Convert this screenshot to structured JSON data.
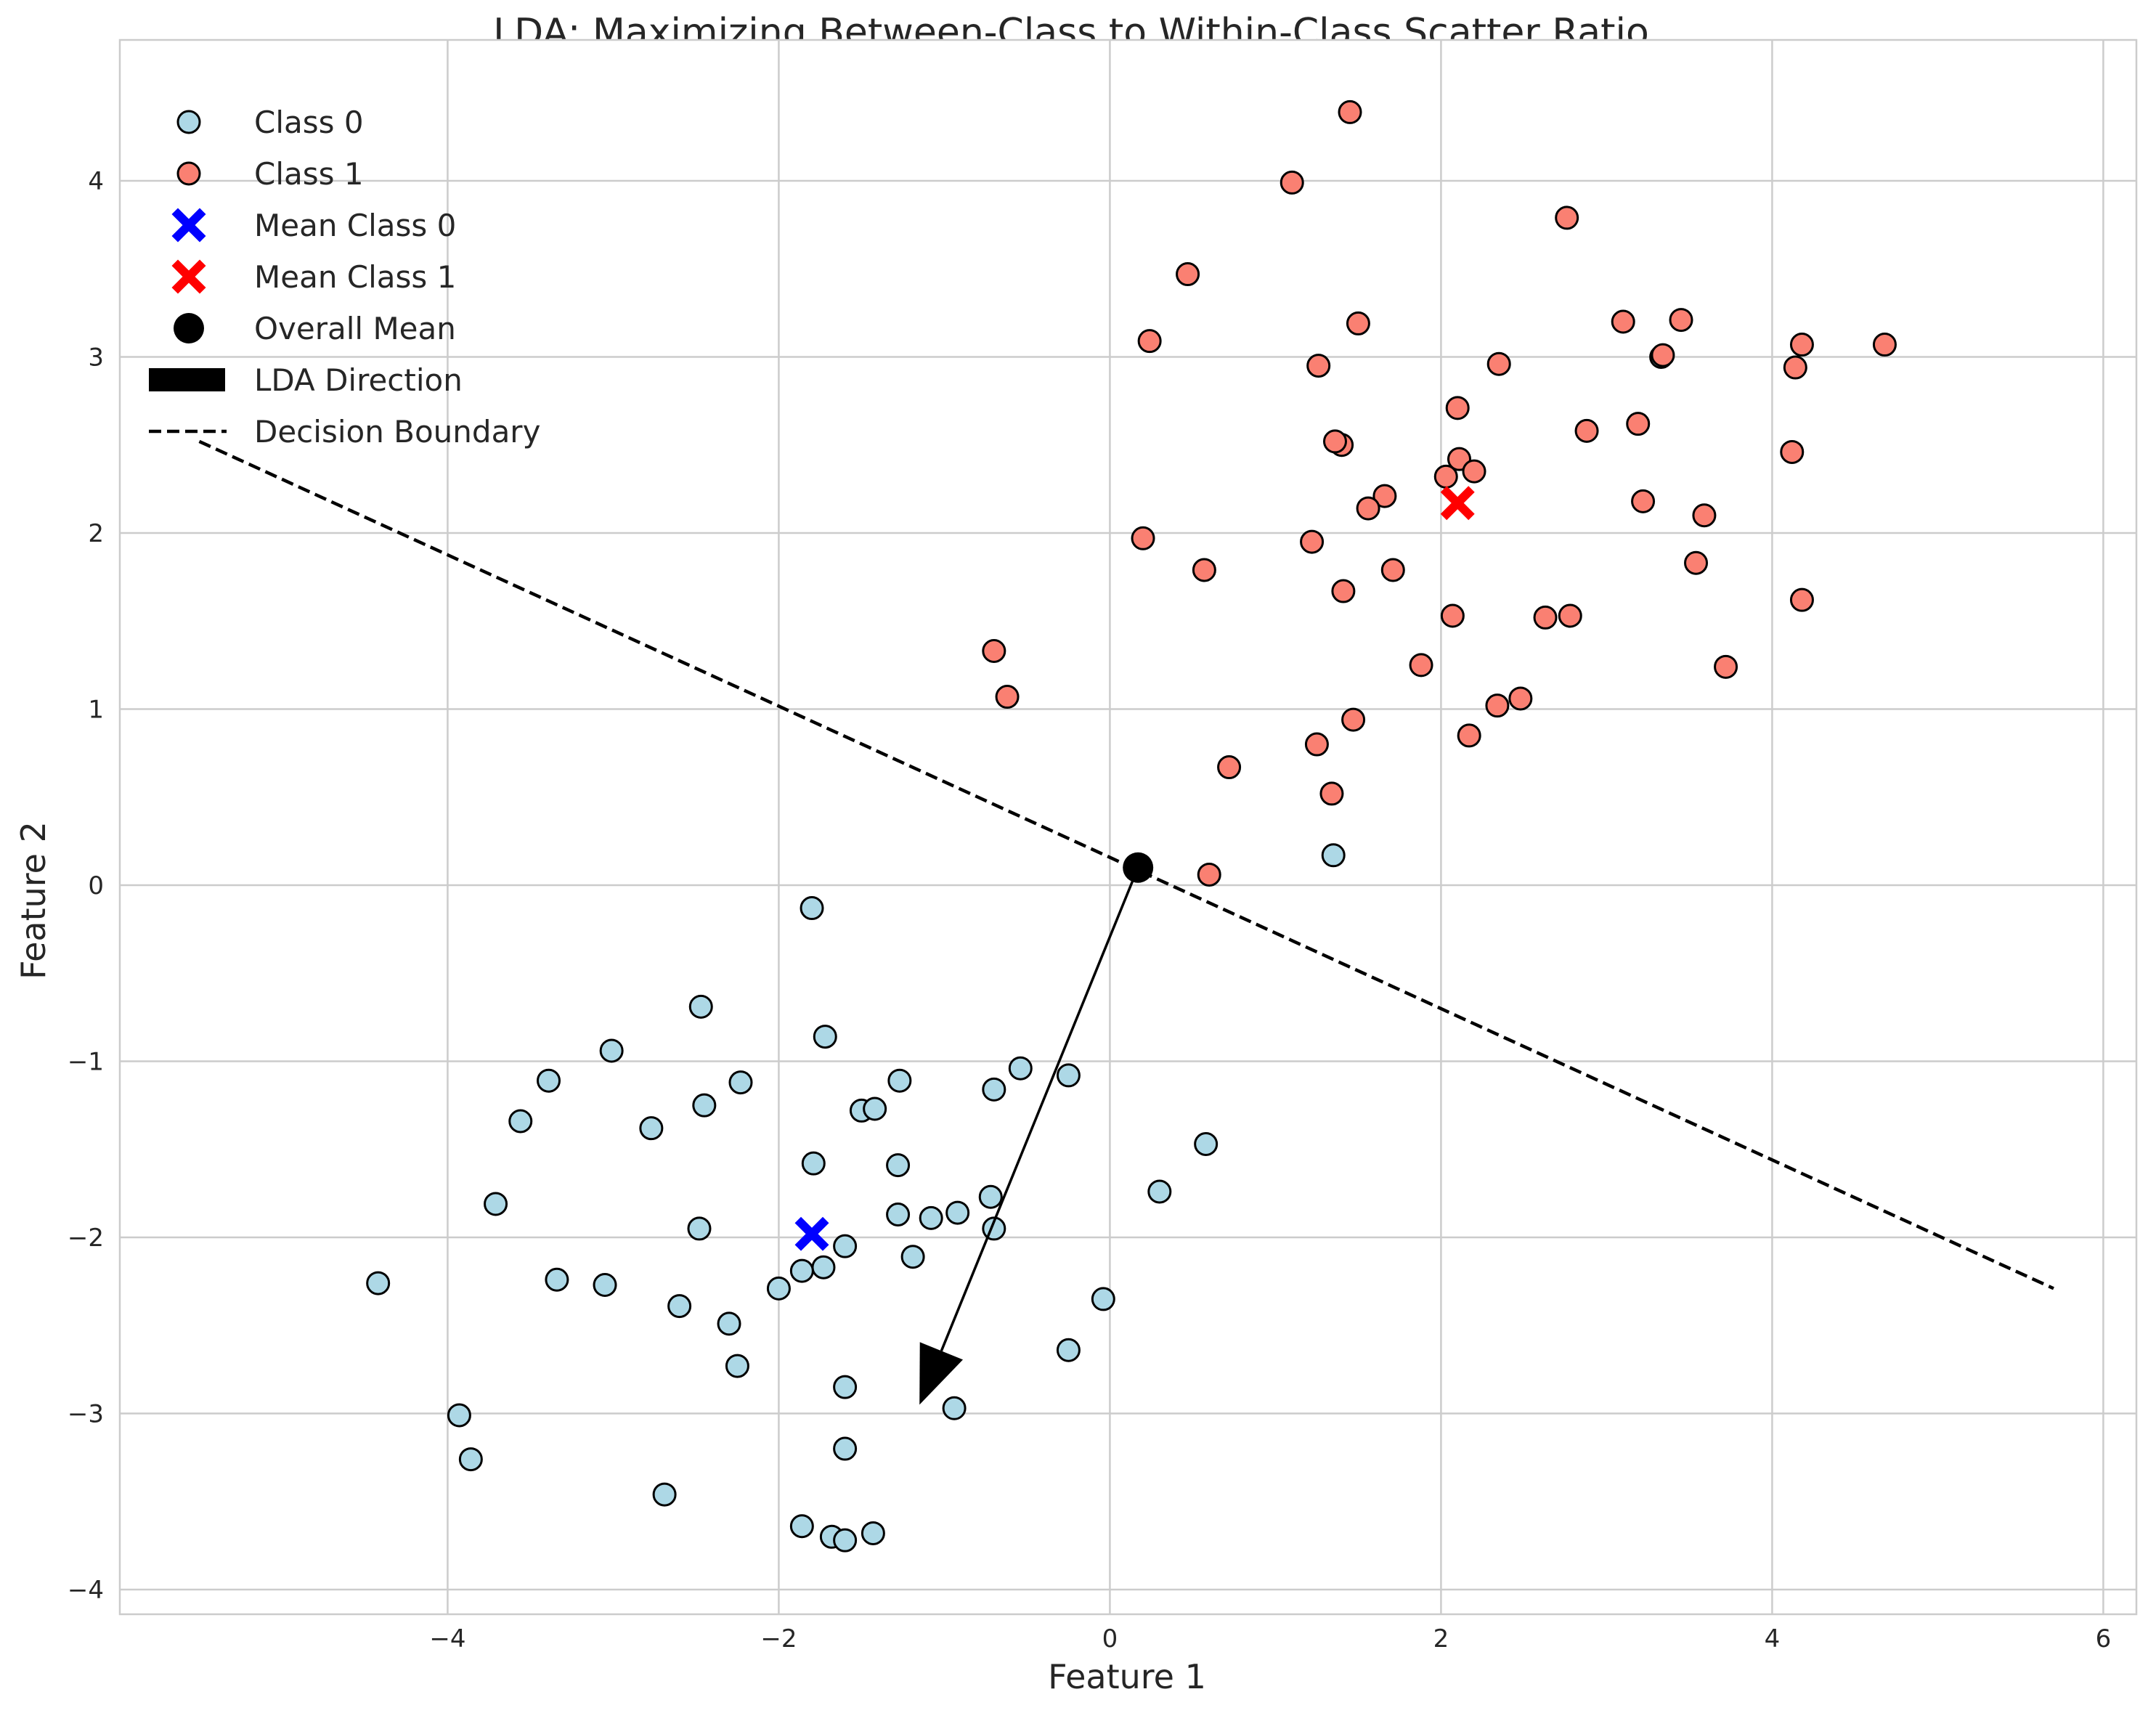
{
  "chart_data": {
    "type": "scatter",
    "title": "LDA: Maximizing Between-Class to Within-Class Scatter Ratio",
    "xlabel": "Feature 1",
    "ylabel": "Feature 2",
    "xlim": [
      -5.98,
      6.2
    ],
    "ylim": [
      -4.14,
      4.8
    ],
    "xticks": [
      -4,
      -2,
      0,
      2,
      4,
      6
    ],
    "yticks": [
      -4,
      -3,
      -2,
      -1,
      0,
      1,
      2,
      3,
      4
    ],
    "xtick_labels": [
      "−4",
      "−2",
      "0",
      "2",
      "4",
      "6"
    ],
    "ytick_labels": [
      "−4",
      "−3",
      "−2",
      "−1",
      "0",
      "1",
      "2",
      "3",
      "4"
    ],
    "grid": true,
    "legend_position": "top-left",
    "legend": [
      {
        "label": "Class 0",
        "kind": "circle",
        "color": "#add8e6"
      },
      {
        "label": "Class 1",
        "kind": "circle",
        "color": "#fa8072"
      },
      {
        "label": "Mean Class 0",
        "kind": "x",
        "color": "#0000ff"
      },
      {
        "label": "Mean Class 1",
        "kind": "x",
        "color": "#ff0000"
      },
      {
        "label": "Overall Mean",
        "kind": "dot",
        "color": "#000000"
      },
      {
        "label": "LDA Direction",
        "kind": "arrow",
        "color": "#000000"
      },
      {
        "label": "Decision Boundary",
        "kind": "dashed",
        "color": "#000000"
      }
    ],
    "series": [
      {
        "name": "Class 0",
        "color": "#add8e6",
        "points": [
          [
            -1.8,
            -0.13
          ],
          [
            -2.47,
            -0.69
          ],
          [
            -1.72,
            -0.86
          ],
          [
            -3.01,
            -0.94
          ],
          [
            -0.54,
            -1.04
          ],
          [
            -0.25,
            -1.08
          ],
          [
            -3.39,
            -1.11
          ],
          [
            -2.23,
            -1.12
          ],
          [
            -1.27,
            -1.11
          ],
          [
            -0.7,
            -1.16
          ],
          [
            -2.45,
            -1.25
          ],
          [
            -1.5,
            -1.28
          ],
          [
            -1.42,
            -1.27
          ],
          [
            -3.56,
            -1.34
          ],
          [
            -2.77,
            -1.38
          ],
          [
            0.58,
            -1.47
          ],
          [
            -1.79,
            -1.58
          ],
          [
            -1.28,
            -1.59
          ],
          [
            -3.71,
            -1.81
          ],
          [
            -0.72,
            -1.77
          ],
          [
            0.3,
            -1.74
          ],
          [
            -1.28,
            -1.87
          ],
          [
            -1.08,
            -1.89
          ],
          [
            -0.92,
            -1.86
          ],
          [
            -2.48,
            -1.95
          ],
          [
            -0.7,
            -1.95
          ],
          [
            -1.6,
            -2.05
          ],
          [
            -1.19,
            -2.11
          ],
          [
            -1.73,
            -2.17
          ],
          [
            -1.86,
            -2.19
          ],
          [
            -4.42,
            -2.26
          ],
          [
            -3.34,
            -2.24
          ],
          [
            -3.05,
            -2.27
          ],
          [
            -2.0,
            -2.29
          ],
          [
            -0.04,
            -2.35
          ],
          [
            -2.6,
            -2.39
          ],
          [
            -2.3,
            -2.49
          ],
          [
            -0.25,
            -2.64
          ],
          [
            -2.25,
            -2.73
          ],
          [
            -1.6,
            -2.85
          ],
          [
            -0.94,
            -2.97
          ],
          [
            -3.93,
            -3.01
          ],
          [
            -1.6,
            -3.2
          ],
          [
            -3.86,
            -3.26
          ],
          [
            -2.69,
            -3.46
          ],
          [
            -1.86,
            -3.64
          ],
          [
            -1.68,
            -3.7
          ],
          [
            -1.6,
            -3.72
          ],
          [
            -1.43,
            -3.68
          ],
          [
            1.35,
            0.17
          ],
          [
            3.33,
            3.0
          ]
        ]
      },
      {
        "name": "Class 1",
        "color": "#fa8072",
        "points": [
          [
            1.45,
            4.39
          ],
          [
            1.1,
            3.99
          ],
          [
            2.76,
            3.79
          ],
          [
            0.47,
            3.47
          ],
          [
            1.5,
            3.19
          ],
          [
            3.1,
            3.2
          ],
          [
            3.45,
            3.21
          ],
          [
            0.24,
            3.09
          ],
          [
            4.68,
            3.07
          ],
          [
            4.18,
            3.07
          ],
          [
            3.34,
            3.01
          ],
          [
            1.26,
            2.95
          ],
          [
            2.35,
            2.96
          ],
          [
            4.14,
            2.94
          ],
          [
            2.1,
            2.71
          ],
          [
            3.19,
            2.62
          ],
          [
            2.88,
            2.58
          ],
          [
            1.4,
            2.5
          ],
          [
            1.36,
            2.52
          ],
          [
            2.11,
            2.42
          ],
          [
            4.12,
            2.46
          ],
          [
            2.2,
            2.35
          ],
          [
            2.03,
            2.32
          ],
          [
            1.66,
            2.21
          ],
          [
            1.56,
            2.14
          ],
          [
            3.22,
            2.18
          ],
          [
            3.59,
            2.1
          ],
          [
            0.2,
            1.97
          ],
          [
            1.22,
            1.95
          ],
          [
            0.57,
            1.79
          ],
          [
            1.71,
            1.79
          ],
          [
            3.54,
            1.83
          ],
          [
            1.41,
            1.67
          ],
          [
            4.18,
            1.62
          ],
          [
            2.07,
            1.53
          ],
          [
            2.63,
            1.52
          ],
          [
            2.78,
            1.53
          ],
          [
            1.88,
            1.25
          ],
          [
            3.72,
            1.24
          ],
          [
            -0.7,
            1.33
          ],
          [
            -0.62,
            1.07
          ],
          [
            2.48,
            1.06
          ],
          [
            2.34,
            1.02
          ],
          [
            1.47,
            0.94
          ],
          [
            2.17,
            0.85
          ],
          [
            1.25,
            0.8
          ],
          [
            0.72,
            0.67
          ],
          [
            1.34,
            0.52
          ],
          [
            0.6,
            0.06
          ]
        ]
      }
    ],
    "means": {
      "class_0": [
        -1.8,
        -1.98
      ],
      "class_1": [
        2.1,
        2.17
      ],
      "overall": [
        0.17,
        0.1
      ]
    },
    "lda_direction": {
      "from": [
        0.17,
        0.1
      ],
      "to": [
        -1.15,
        -2.95
      ]
    },
    "decision_boundary": {
      "from": [
        -5.5,
        2.52
      ],
      "to": [
        5.7,
        -2.29
      ]
    }
  }
}
